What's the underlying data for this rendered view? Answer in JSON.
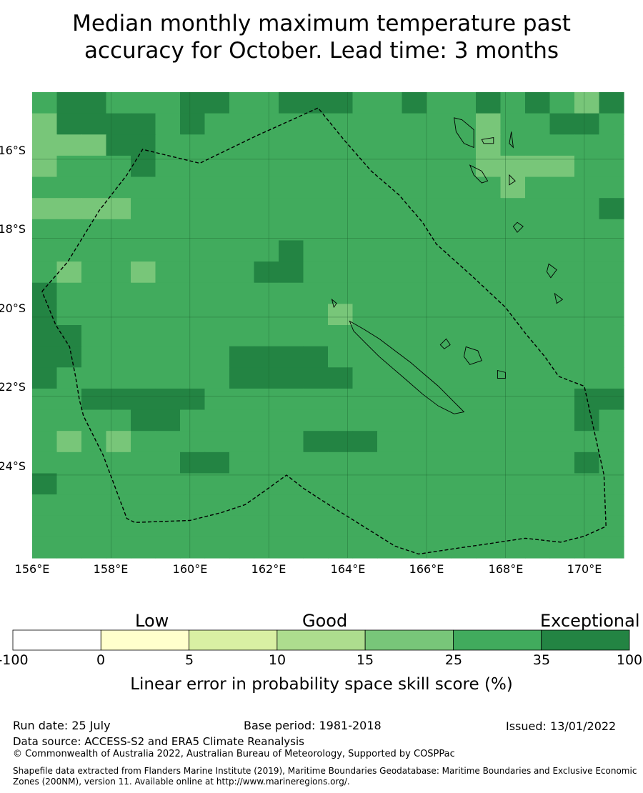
{
  "title_line1": "Median monthly maximum temperature past",
  "title_line2": "accuracy for October. Lead time: 3 months",
  "map": {
    "lon_range": [
      156.0,
      171.0
    ],
    "lat_range": [
      -14.3,
      -26.1
    ],
    "lat_ticks": [
      "16°S",
      "18°S",
      "20°S",
      "22°S",
      "24°S"
    ],
    "lon_ticks": [
      "156°E",
      "158°E",
      "160°E",
      "162°E",
      "164°E",
      "166°E",
      "168°E",
      "170°E"
    ],
    "boundary": "dashed EEZ outline",
    "grid_classes_legend": "1=0-5, 2=5-10, 3=10-15, 4=15-25, 5=25-35, 6=35-100",
    "grid": [
      "566555665566655655656546",
      "466665655555555555455665",
      "444665555555555555455555",
      "455565555555555555444455",
      "555555555555555555545555",
      "444455555555555555555556",
      "555555555555555555555555",
      "555555555565555555555555",
      "545545555665555555555555",
      "655555555555555555555555",
      "655555555555455555555555",
      "665555555555555555555555",
      "665555556666555555555555",
      "655555556666655555555555",
      "556666655555555555555566",
      "555566555555555555555565",
      "545455555556665555555555",
      "555555665555555555555565",
      "655555555555555555555555",
      "555555555555555555555555",
      "555555555555555555555555",
      "555555555555555555555555"
    ]
  },
  "colorbar": {
    "categories": [
      "Low",
      "Good",
      "Exceptional"
    ],
    "ticks": [
      "-100",
      "0",
      "5",
      "10",
      "15",
      "25",
      "35",
      "100"
    ],
    "colors": [
      "#ffffff",
      "#ffffcc",
      "#d9f0a3",
      "#addd8e",
      "#78c679",
      "#41ab5d",
      "#238443"
    ],
    "title": "Linear error in probability space skill score (%)"
  },
  "footer": {
    "run_date": "Run date: 25 July",
    "base_period": "Base period: 1981-2018",
    "issued": "Issued: 13/01/2022",
    "data_source": "Data source: ACCESS-S2 and ERA5 Climate Reanalysis",
    "copyright": "© Commonwealth of Australia 2022, Australian Bureau of Meteorology, Supported by COSPPac",
    "shapefile": "Shapefile data extracted from Flanders Marine Institute (2019), Maritime Boundaries Geodatabase: Maritime Boundaries and Exclusive Economic Zones (200NM), version 11. Available online at http://www.marineregions.org/."
  }
}
